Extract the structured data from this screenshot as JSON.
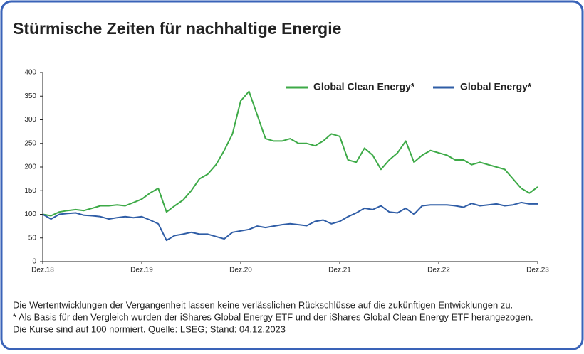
{
  "chart_data": {
    "type": "line",
    "title": "Stürmische Zeiten für nachhaltige Energie",
    "x": [
      "2018-12",
      "2019-01",
      "2019-02",
      "2019-03",
      "2019-04",
      "2019-05",
      "2019-06",
      "2019-07",
      "2019-08",
      "2019-09",
      "2019-10",
      "2019-11",
      "2019-12",
      "2020-01",
      "2020-02",
      "2020-03",
      "2020-04",
      "2020-05",
      "2020-06",
      "2020-07",
      "2020-08",
      "2020-09",
      "2020-10",
      "2020-11",
      "2020-12",
      "2021-01",
      "2021-02",
      "2021-03",
      "2021-04",
      "2021-05",
      "2021-06",
      "2021-07",
      "2021-08",
      "2021-09",
      "2021-10",
      "2021-11",
      "2021-12",
      "2022-01",
      "2022-02",
      "2022-03",
      "2022-04",
      "2022-05",
      "2022-06",
      "2022-07",
      "2022-08",
      "2022-09",
      "2022-10",
      "2022-11",
      "2022-12",
      "2023-01",
      "2023-02",
      "2023-03",
      "2023-04",
      "2023-05",
      "2023-06",
      "2023-07",
      "2023-08",
      "2023-09",
      "2023-10",
      "2023-11",
      "2023-12"
    ],
    "series": [
      {
        "name": "Global Clean Energy*",
        "color": "#3daa47",
        "values": [
          100,
          97,
          105,
          108,
          110,
          108,
          113,
          118,
          118,
          120,
          118,
          125,
          132,
          145,
          155,
          105,
          118,
          130,
          150,
          175,
          185,
          205,
          235,
          270,
          340,
          360,
          310,
          260,
          255,
          255,
          260,
          250,
          250,
          245,
          255,
          270,
          265,
          215,
          210,
          240,
          225,
          195,
          215,
          230,
          255,
          210,
          225,
          235,
          230,
          225,
          215,
          215,
          205,
          210,
          205,
          200,
          195,
          175,
          155,
          145,
          158
        ]
      },
      {
        "name": "Global Energy*",
        "color": "#2f5da6",
        "values": [
          100,
          90,
          100,
          102,
          103,
          98,
          97,
          95,
          90,
          93,
          95,
          93,
          95,
          88,
          80,
          45,
          55,
          58,
          62,
          58,
          58,
          53,
          48,
          62,
          65,
          68,
          75,
          72,
          75,
          78,
          80,
          78,
          76,
          85,
          88,
          80,
          85,
          95,
          103,
          113,
          110,
          118,
          105,
          103,
          113,
          100,
          118,
          120,
          120,
          120,
          118,
          115,
          123,
          118,
          120,
          122,
          118,
          120,
          125,
          122,
          122
        ]
      }
    ],
    "xlim": [
      "2018-12",
      "2023-12"
    ],
    "xticks": [
      {
        "value": "2018-12",
        "label": "Dez.18"
      },
      {
        "value": "2019-12",
        "label": "Dez.19"
      },
      {
        "value": "2020-12",
        "label": "Dez.20"
      },
      {
        "value": "2021-12",
        "label": "Dez.21"
      },
      {
        "value": "2022-12",
        "label": "Dez.22"
      },
      {
        "value": "2023-12",
        "label": "Dez.23"
      }
    ],
    "ylim": [
      0,
      400
    ],
    "yticks": [
      0,
      50,
      100,
      150,
      200,
      250,
      300,
      350,
      400
    ],
    "grid": false,
    "legend": "top-right",
    "notes": [
      "Die Wertentwicklungen der Vergangenheit lassen keine verlässlichen Rückschlüsse auf die zukünftigen Entwicklungen zu.",
      "* Als Basis für den Vergleich wurden der iShares Global Energy ETF und der iShares Global Clean Energy ETF herangezogen.",
      "Die Kurse sind auf 100 normiert. Quelle: LSEG; Stand: 04.12.2023"
    ]
  }
}
